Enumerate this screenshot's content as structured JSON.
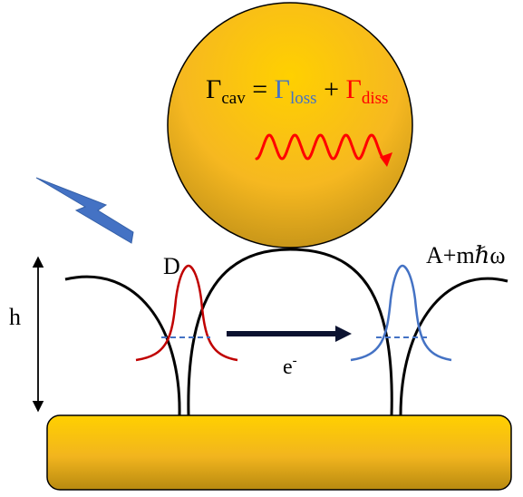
{
  "equation": {
    "gamma": "Γ",
    "sub_cav": "cav",
    "equals": " = ",
    "sub_loss": "loss",
    "plus": " + ",
    "sub_diss": "diss"
  },
  "labels": {
    "donor": "D",
    "acceptor_prefix": "A+m",
    "acceptor_hbar": "ℏ",
    "acceptor_suffix": "ω",
    "height": "h",
    "electron": "e",
    "electron_sup": "-"
  },
  "colors": {
    "gold_light": "#FFD000",
    "gold_mid": "#F4B41A",
    "gold_dark": "#B88A10",
    "donor_wave": "#C00000",
    "acceptor_wave": "#4472C4",
    "diss_red": "#FF0000",
    "loss_blue": "#4472C4",
    "lightning": "#4472C4",
    "arrow": "#0B1230",
    "potential": "#000000"
  },
  "icons": {
    "lightning": "lightning-bolt-icon",
    "photon": "wavy-arrow-icon",
    "transfer": "right-arrow-icon",
    "height": "double-arrow-icon"
  }
}
